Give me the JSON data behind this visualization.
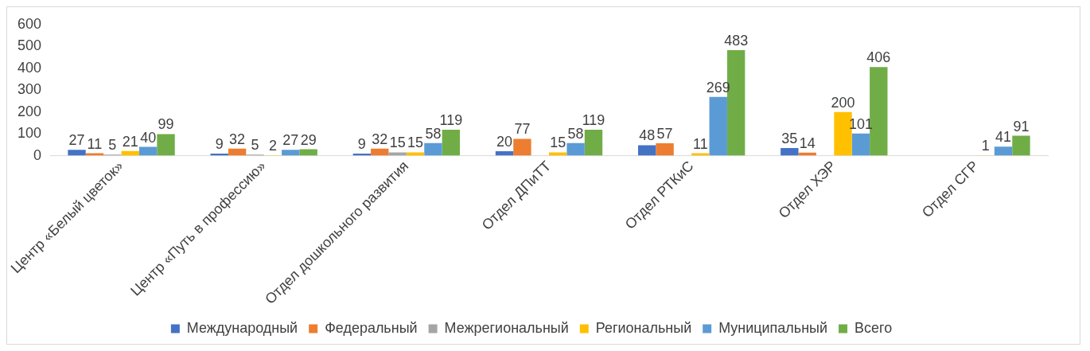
{
  "chart_data": {
    "type": "bar",
    "categories": [
      "Центр «Белый цветок»",
      "Центр «Путь в профессию»",
      "Отдел дошкольного развития",
      "Отдел ДПиТТ",
      "Отдел РТКиС",
      "Отдел ХЭР",
      "Отдел СГР"
    ],
    "series": [
      {
        "name": "Международный",
        "color": "#4472c4",
        "values": [
          27,
          9,
          9,
          20,
          48,
          35,
          null
        ]
      },
      {
        "name": "Федеральный",
        "color": "#ed7d31",
        "values": [
          11,
          32,
          32,
          77,
          57,
          14,
          null
        ]
      },
      {
        "name": "Межрегиональный",
        "color": "#a5a5a5",
        "values": [
          5,
          5,
          15,
          null,
          null,
          null,
          null
        ]
      },
      {
        "name": "Региональный",
        "color": "#ffc000",
        "values": [
          21,
          2,
          15,
          15,
          11,
          200,
          1
        ]
      },
      {
        "name": "Муниципальный",
        "color": "#5b9bd5",
        "values": [
          40,
          27,
          58,
          58,
          269,
          101,
          41
        ]
      },
      {
        "name": "Всего",
        "color": "#70ad47",
        "values": [
          99,
          29,
          119,
          119,
          483,
          406,
          91
        ]
      }
    ],
    "ylim": [
      0,
      600
    ],
    "yticks": [
      0,
      100,
      200,
      300,
      400,
      500,
      600
    ],
    "grid": false,
    "legend": "bottom",
    "data_labels": true
  }
}
